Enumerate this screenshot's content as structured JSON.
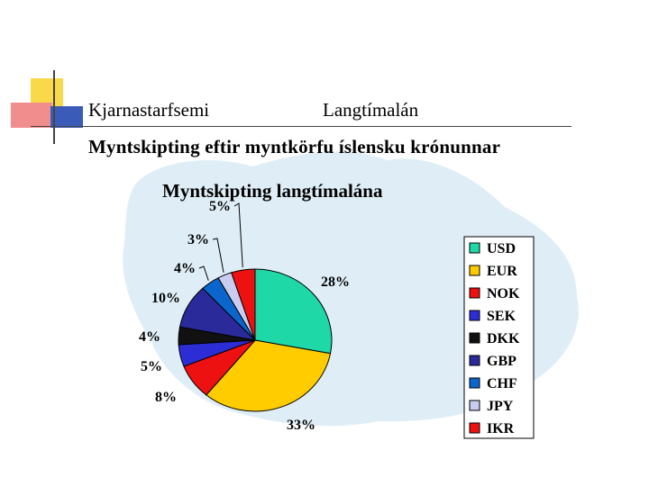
{
  "header": {
    "left_label": "Kjarnastarfsemi",
    "right_label": "Langtímalán"
  },
  "slide_title": "Myntskipting eftir myntkörfu íslensku krónunnar",
  "colors": {
    "map_tint": "#dfeef6",
    "deco_yellow": "#f9d94a",
    "deco_red": "#f28d8d",
    "deco_blue": "#3a5bb8",
    "deco_line": "#444444"
  },
  "chart_data": {
    "type": "pie",
    "title": "Myntskipting langtímalána",
    "legend_position": "right",
    "series": [
      {
        "name": "USD",
        "value": 28,
        "label": "28%",
        "color": "#1ed8a8"
      },
      {
        "name": "EUR",
        "value": 33,
        "label": "33%",
        "color": "#ffcc00"
      },
      {
        "name": "NOK",
        "value": 8,
        "label": "8%",
        "color": "#ee1111"
      },
      {
        "name": "SEK",
        "value": 5,
        "label": "5%",
        "color": "#2d2dd6"
      },
      {
        "name": "DKK",
        "value": 4,
        "label": "4%",
        "color": "#111111"
      },
      {
        "name": "GBP",
        "value": 10,
        "label": "10%",
        "color": "#2a2a9a"
      },
      {
        "name": "CHF",
        "value": 4,
        "label": "4%",
        "color": "#0a66cc"
      },
      {
        "name": "JPY",
        "value": 3,
        "label": "3%",
        "color": "#c8cdf0"
      },
      {
        "name": "IKR",
        "value": 5,
        "label": "5%",
        "color": "#ee1111"
      }
    ]
  }
}
